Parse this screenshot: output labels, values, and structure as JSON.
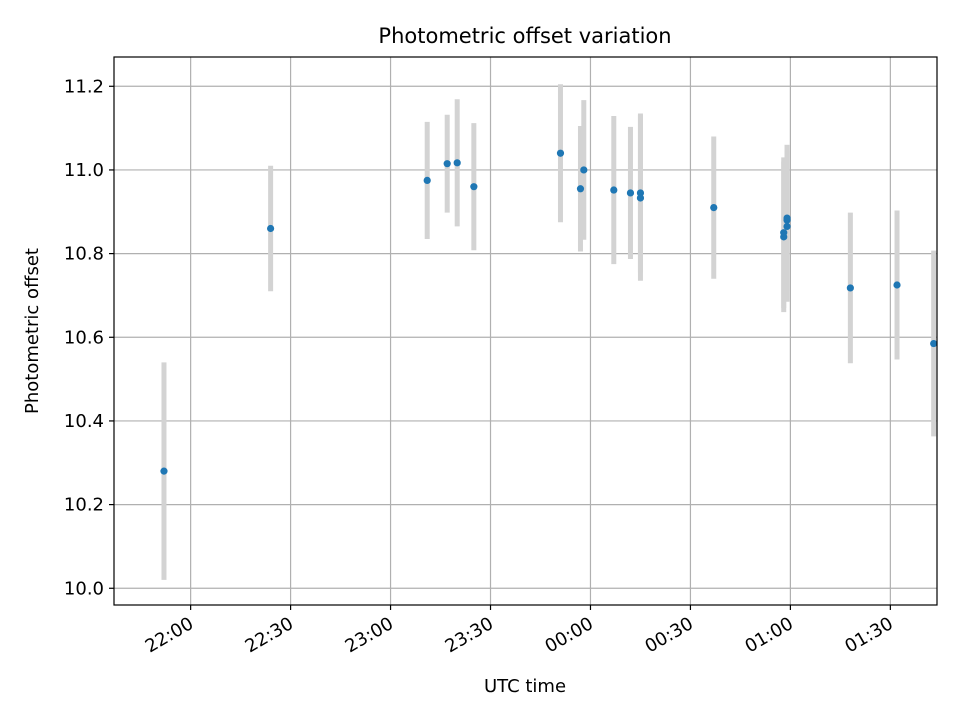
{
  "chart_data": {
    "type": "scatter",
    "title": "Photometric offset variation",
    "xlabel": "UTC time",
    "ylabel": "Photometric offset",
    "grid": true,
    "x_unit": "minutes (UTC clock, axis spans midnight)",
    "xlim": [
      "21:37",
      "25:44"
    ],
    "ylim": [
      9.96,
      11.27
    ],
    "x_ticks": [
      "22:00",
      "22:30",
      "23:00",
      "23:30",
      "00:00",
      "00:30",
      "01:00",
      "01:30"
    ],
    "y_ticks": [
      "10.0",
      "10.2",
      "10.4",
      "10.6",
      "10.8",
      "11.0",
      "11.2"
    ],
    "point_color": "#1f77b4",
    "errorbar_color": "#d3d3d3",
    "points": [
      {
        "t": "21:52",
        "y": 10.28,
        "err": 0.26
      },
      {
        "t": "22:24",
        "y": 10.86,
        "err": 0.15
      },
      {
        "t": "23:11",
        "y": 10.975,
        "err": 0.14
      },
      {
        "t": "23:17",
        "y": 11.015,
        "err": 0.117
      },
      {
        "t": "23:20",
        "y": 11.017,
        "err": 0.152
      },
      {
        "t": "23:25",
        "y": 10.96,
        "err": 0.152
      },
      {
        "t": "23:51",
        "y": 11.04,
        "err": 0.165
      },
      {
        "t": "23:57",
        "y": 10.955,
        "err": 0.15
      },
      {
        "t": "23:58",
        "y": 11.0,
        "err": 0.167
      },
      {
        "t": "00:07",
        "y": 10.952,
        "err": 0.177
      },
      {
        "t": "00:12",
        "y": 10.945,
        "err": 0.158
      },
      {
        "t": "00:15",
        "y": 10.945,
        "err": 0.19
      },
      {
        "t": "00:15",
        "y": 10.933,
        "err": 0.198
      },
      {
        "t": "00:37",
        "y": 10.91,
        "err": 0.17
      },
      {
        "t": "00:58",
        "y": 10.84,
        "err": 0.18
      },
      {
        "t": "00:58",
        "y": 10.85,
        "err": 0.18
      },
      {
        "t": "00:59",
        "y": 10.865,
        "err": 0.18
      },
      {
        "t": "00:59",
        "y": 10.88,
        "err": 0.18
      },
      {
        "t": "00:59",
        "y": 10.885,
        "err": 0.175
      },
      {
        "t": "01:18",
        "y": 10.718,
        "err": 0.18
      },
      {
        "t": "01:32",
        "y": 10.725,
        "err": 0.178
      },
      {
        "t": "01:43",
        "y": 10.585,
        "err": 0.222
      }
    ]
  }
}
